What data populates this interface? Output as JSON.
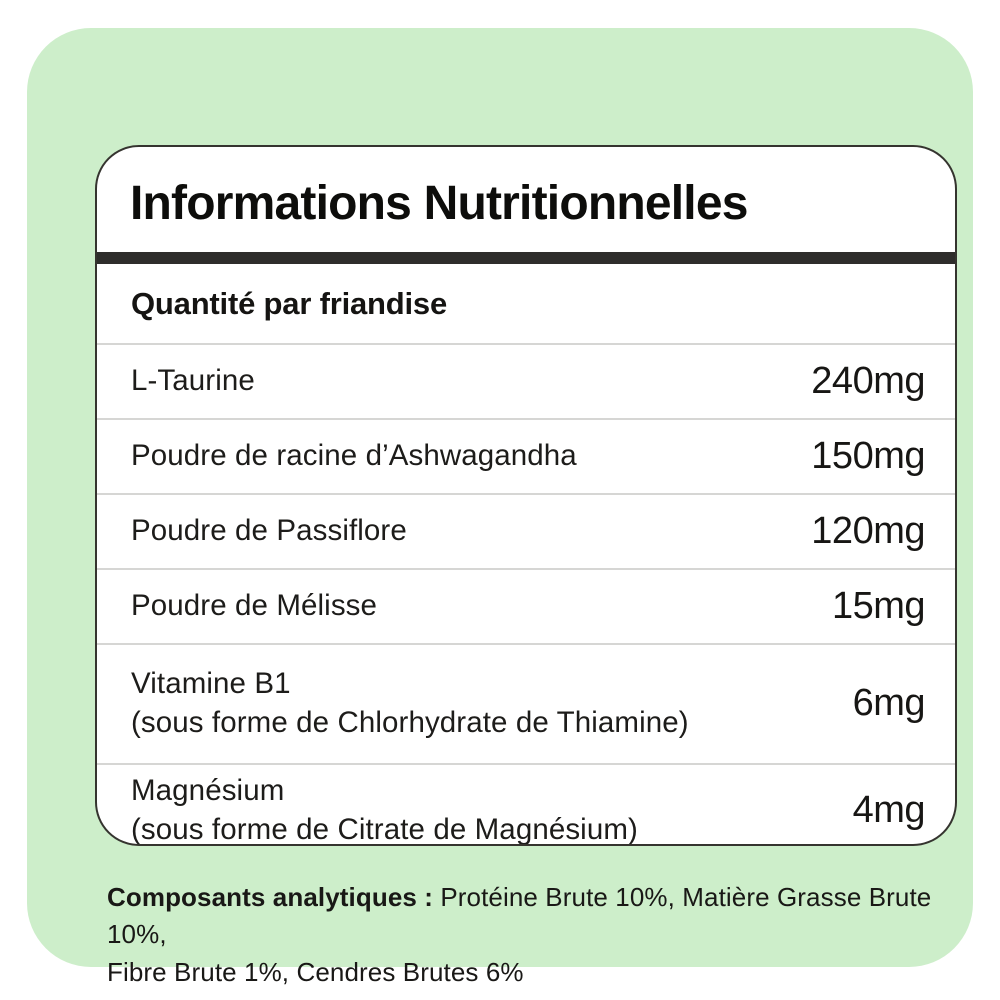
{
  "card": {
    "title": "Informations Nutritionnelles",
    "serving_header": "Quantité par friandise",
    "rows": [
      {
        "label": "L-Taurine",
        "value": "240mg"
      },
      {
        "label": "Poudre de racine d’Ashwagandha",
        "value": "150mg"
      },
      {
        "label": "Poudre de Passiflore",
        "value": "120mg"
      },
      {
        "label": "Poudre de Mélisse",
        "value": "15mg"
      },
      {
        "label": "Vitamine B1",
        "sub": "(sous forme de Chlorhydrate de Thiamine)",
        "value": "6mg"
      },
      {
        "label": "Magnésium",
        "sub": "(sous forme de Citrate de Magnésium)",
        "value": "4mg"
      }
    ]
  },
  "footnote": {
    "lead": "Composants analytiques : ",
    "line1_rest": "Protéine Brute 10%, Matière Grasse Brute 10%,",
    "line2": "Fibre Brute 1%, Cendres Brutes 6%"
  },
  "colors": {
    "panel_green": "#cdeeca",
    "title_bar": "#2e2d2b",
    "card_border": "#35342f",
    "divider": "#d6d6d4",
    "text": "#1d1c1a"
  }
}
